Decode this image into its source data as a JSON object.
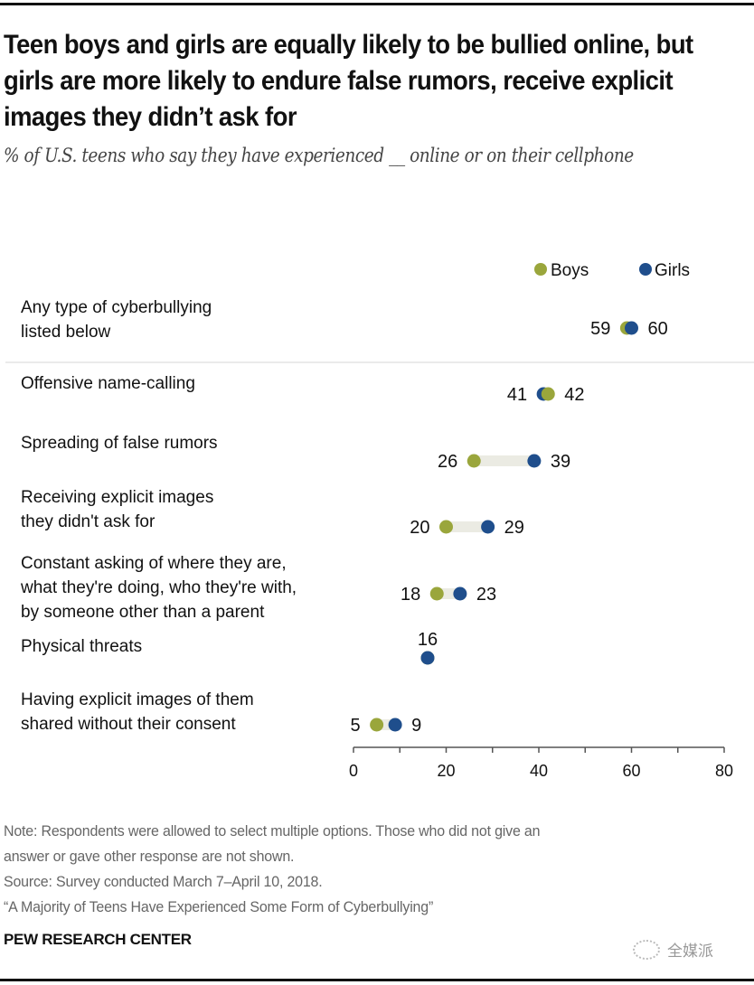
{
  "header": {
    "title": "Teen boys and girls are equally likely to be bullied online, but girls are more likely to endure false rumors, receive explicit images they didn’t ask for",
    "subtitle": "% of U.S. teens who say they have experienced __ online or on their cellphone"
  },
  "colors": {
    "boys": "#9aa63c",
    "girls": "#1f4e8c",
    "connector": "#ebebe3",
    "axis": "#555555",
    "separator": "#e3e3e3"
  },
  "chart_data": {
    "type": "dot-plot",
    "title": "Teen boys and girls are equally likely to be bullied online, but girls are more likely to endure false rumors, receive explicit images they didn’t ask for",
    "subtitle": "% of U.S. teens who say they have experienced __ online or on their cellphone",
    "xlabel": "",
    "ylabel": "",
    "xlim": [
      0,
      80
    ],
    "xticks": [
      0,
      20,
      40,
      60,
      80
    ],
    "minor_ticks": [
      10,
      30,
      50,
      70
    ],
    "grid": false,
    "legend": {
      "placement": "top-right",
      "entries": [
        {
          "name": "Boys",
          "color": "#9aa63c"
        },
        {
          "name": "Girls",
          "color": "#1f4e8c"
        }
      ]
    },
    "categories": [
      [
        "Any type of cyberbullying",
        "listed below"
      ],
      [
        "Offensive name-calling"
      ],
      [
        "Spreading of false rumors"
      ],
      [
        "Receiving explicit images",
        "they didn't ask for"
      ],
      [
        "Constant asking of where they are,",
        "what they're doing, who they're with,",
        "by someone other than a parent"
      ],
      [
        "Physical threats"
      ],
      [
        "Having explicit images of them",
        "shared without their consent"
      ]
    ],
    "series": [
      {
        "name": "Boys",
        "values": [
          59,
          42,
          26,
          20,
          18,
          16,
          5
        ]
      },
      {
        "name": "Girls",
        "values": [
          60,
          41,
          39,
          29,
          23,
          16,
          9
        ]
      }
    ],
    "separator_after_row": 0
  },
  "footer": {
    "notes": [
      "Note: Respondents were allowed to select multiple options. Those who did not give an",
      "answer or gave other response are not shown.",
      "Source: Survey conducted March 7–April 10, 2018.",
      "“A Majority of Teens Have Experienced Some Form of Cyberbullying”"
    ],
    "brand": "PEW RESEARCH CENTER",
    "watermark": "全媒派"
  }
}
